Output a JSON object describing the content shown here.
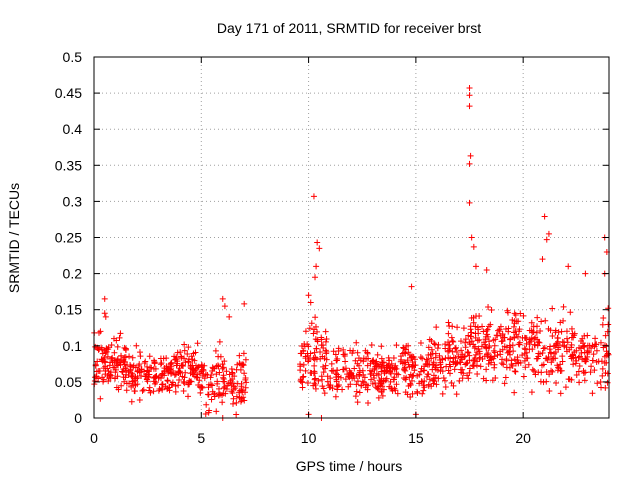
{
  "chart_data": {
    "type": "scatter",
    "title": "Day 171 of 2011, SRMTID for receiver brst",
    "xlabel": "GPS time / hours",
    "ylabel": "SRMTID / TECUs",
    "xlim": [
      0,
      24
    ],
    "ylim": [
      0,
      0.5
    ],
    "x_ticks": [
      0,
      5,
      10,
      15,
      20
    ],
    "x_tick_labels": [
      "0",
      "5",
      "10",
      "15",
      "20"
    ],
    "y_ticks": [
      0,
      0.05,
      0.1,
      0.15,
      0.2,
      0.25,
      0.3,
      0.35,
      0.4,
      0.45,
      0.5
    ],
    "y_tick_labels": [
      "0",
      "0.05",
      "0.1",
      "0.15",
      "0.2",
      "0.25",
      "0.3",
      "0.35",
      "0.4",
      "0.45",
      "0.5"
    ],
    "grid": true,
    "marker": "+",
    "color": "#ff0000",
    "series": [
      {
        "name": "SRMTID",
        "data_gap_hours": [
          7.1,
          9.6
        ],
        "clusters": [
          {
            "from": 0.0,
            "to": 1.5,
            "center": 0.075,
            "spread": 0.035,
            "count": 110
          },
          {
            "from": 1.5,
            "to": 3.5,
            "center": 0.06,
            "spread": 0.03,
            "count": 120
          },
          {
            "from": 3.5,
            "to": 5.2,
            "center": 0.065,
            "spread": 0.03,
            "count": 110
          },
          {
            "from": 5.2,
            "to": 7.1,
            "center": 0.05,
            "spread": 0.04,
            "count": 110
          },
          {
            "from": 9.6,
            "to": 11.0,
            "center": 0.08,
            "spread": 0.05,
            "count": 90
          },
          {
            "from": 11.0,
            "to": 13.5,
            "center": 0.06,
            "spread": 0.035,
            "count": 150
          },
          {
            "from": 13.5,
            "to": 15.5,
            "center": 0.065,
            "spread": 0.035,
            "count": 120
          },
          {
            "from": 15.5,
            "to": 17.5,
            "center": 0.08,
            "spread": 0.04,
            "count": 130
          },
          {
            "from": 17.5,
            "to": 19.5,
            "center": 0.1,
            "spread": 0.045,
            "count": 130
          },
          {
            "from": 19.5,
            "to": 21.5,
            "center": 0.095,
            "spread": 0.045,
            "count": 120
          },
          {
            "from": 21.5,
            "to": 24.0,
            "center": 0.09,
            "spread": 0.045,
            "count": 140
          }
        ],
        "highlights": [
          [
            0.5,
            0.165
          ],
          [
            0.5,
            0.145
          ],
          [
            0.55,
            0.14
          ],
          [
            0.3,
            0.12
          ],
          [
            6.0,
            0.165
          ],
          [
            6.1,
            0.155
          ],
          [
            6.3,
            0.14
          ],
          [
            7.0,
            0.158
          ],
          [
            10.25,
            0.307
          ],
          [
            10.4,
            0.243
          ],
          [
            10.35,
            0.21
          ],
          [
            10.3,
            0.195
          ],
          [
            10.5,
            0.235
          ],
          [
            10.0,
            0.17
          ],
          [
            10.1,
            0.16
          ],
          [
            14.8,
            0.182
          ],
          [
            17.5,
            0.457
          ],
          [
            17.5,
            0.447
          ],
          [
            17.5,
            0.432
          ],
          [
            17.55,
            0.363
          ],
          [
            17.5,
            0.352
          ],
          [
            17.5,
            0.298
          ],
          [
            17.6,
            0.25
          ],
          [
            17.7,
            0.237
          ],
          [
            17.8,
            0.21
          ],
          [
            18.3,
            0.205
          ],
          [
            21.0,
            0.279
          ],
          [
            21.2,
            0.255
          ],
          [
            21.1,
            0.247
          ],
          [
            20.9,
            0.22
          ],
          [
            22.1,
            0.21
          ],
          [
            22.9,
            0.2
          ],
          [
            23.8,
            0.25
          ],
          [
            23.9,
            0.23
          ],
          [
            23.8,
            0.2
          ],
          [
            10.0,
            0.005
          ],
          [
            10.6,
            0.0
          ],
          [
            15.0,
            0.005
          ],
          [
            6.0,
            0.0
          ]
        ]
      }
    ]
  }
}
